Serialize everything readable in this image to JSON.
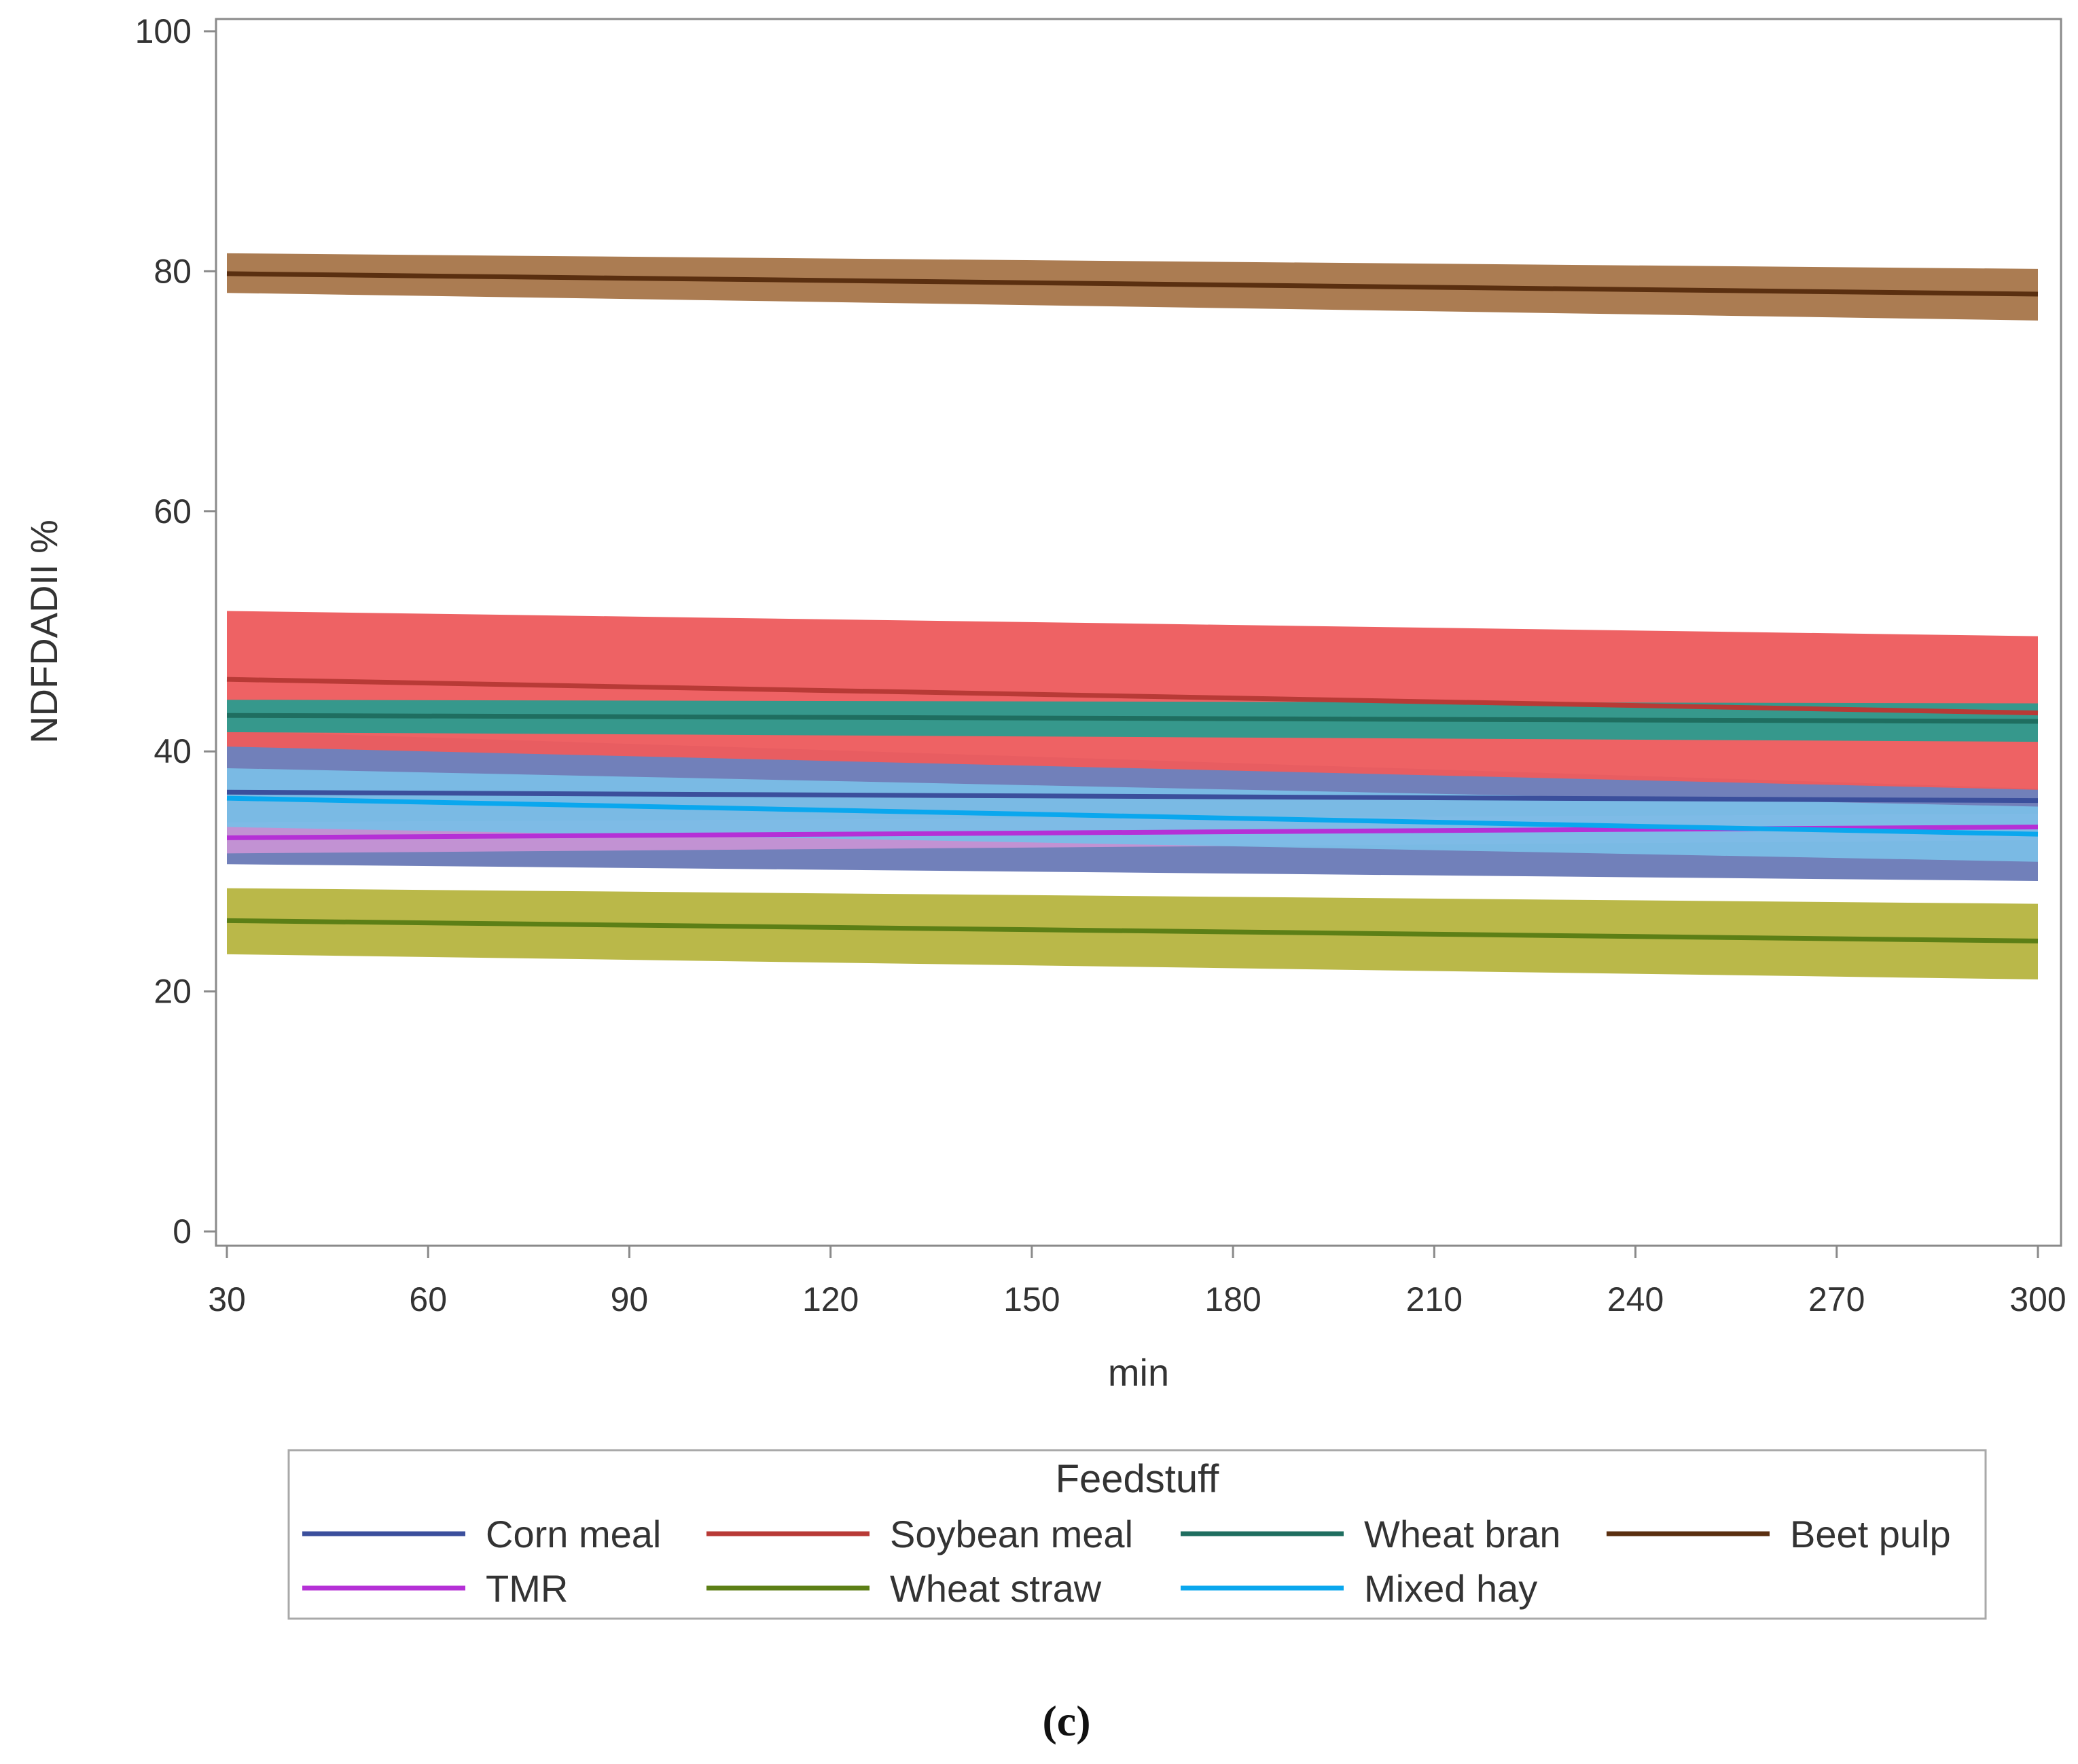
{
  "chart_data": {
    "type": "line",
    "xlabel": "min",
    "ylabel": "NDFDADII %",
    "xlim": [
      30,
      300
    ],
    "ylim": [
      0,
      100
    ],
    "x_ticks": [
      30,
      60,
      90,
      120,
      150,
      180,
      210,
      240,
      270,
      300
    ],
    "y_ticks": [
      0,
      20,
      40,
      60,
      80,
      100
    ],
    "x": [
      30,
      300
    ],
    "grid": false,
    "legend_title": "Feedstuff",
    "legend_position": "bottom",
    "caption": "(c)",
    "series": [
      {
        "name": "Corn meal",
        "color": "#3b4f9c",
        "band_color": "#6b7bb7",
        "values": [
          36.6,
          35.9
        ],
        "lower": [
          30.6,
          29.2
        ],
        "upper": [
          41.7,
          36.9
        ]
      },
      {
        "name": "Soybean meal",
        "color": "#b83a36",
        "band_color": "#ed5c5e",
        "values": [
          46.0,
          43.2
        ],
        "lower": [
          40.4,
          36.8
        ],
        "upper": [
          51.7,
          49.6
        ]
      },
      {
        "name": "Wheat bran",
        "color": "#1f6e60",
        "band_color": "#2e9a8e",
        "values": [
          43.0,
          42.5
        ],
        "lower": [
          41.6,
          40.8
        ],
        "upper": [
          44.3,
          44.0
        ]
      },
      {
        "name": "Beet pulp",
        "color": "#5a2f10",
        "band_color": "#a8774b",
        "values": [
          79.8,
          78.1
        ],
        "lower": [
          78.2,
          75.9
        ],
        "upper": [
          81.5,
          80.2
        ]
      },
      {
        "name": "TMR",
        "color": "#b530d6",
        "band_color": "#c693d4",
        "values": [
          32.8,
          33.7
        ],
        "lower": [
          31.5,
          32.6
        ],
        "upper": [
          34.1,
          34.8
        ]
      },
      {
        "name": "Wheat straw",
        "color": "#5c7f16",
        "band_color": "#b7b542",
        "values": [
          25.9,
          24.2
        ],
        "lower": [
          23.1,
          21.0
        ],
        "upper": [
          28.6,
          27.3
        ]
      },
      {
        "name": "Mixed hay",
        "color": "#0aa7ee",
        "band_color": "#7bbce6",
        "values": [
          36.1,
          33.1
        ],
        "lower": [
          33.7,
          30.8
        ],
        "upper": [
          38.6,
          35.4
        ]
      }
    ]
  }
}
